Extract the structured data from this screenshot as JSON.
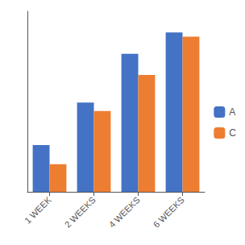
{
  "chart_data": {
    "type": "bar",
    "categories": [
      "1 WEEK",
      "2 WEEKS",
      "4 WEEKS",
      "6 WEEKS"
    ],
    "series": [
      {
        "name": "A",
        "color": "#4472C4",
        "values": [
          2.2,
          4.2,
          6.5,
          7.5
        ]
      },
      {
        "name": "C",
        "color": "#ED7D31",
        "values": [
          1.3,
          3.8,
          5.5,
          7.3
        ]
      }
    ],
    "ylim": [
      0,
      8.5
    ],
    "grid": false,
    "tick_labels": "x",
    "legend": "right"
  }
}
